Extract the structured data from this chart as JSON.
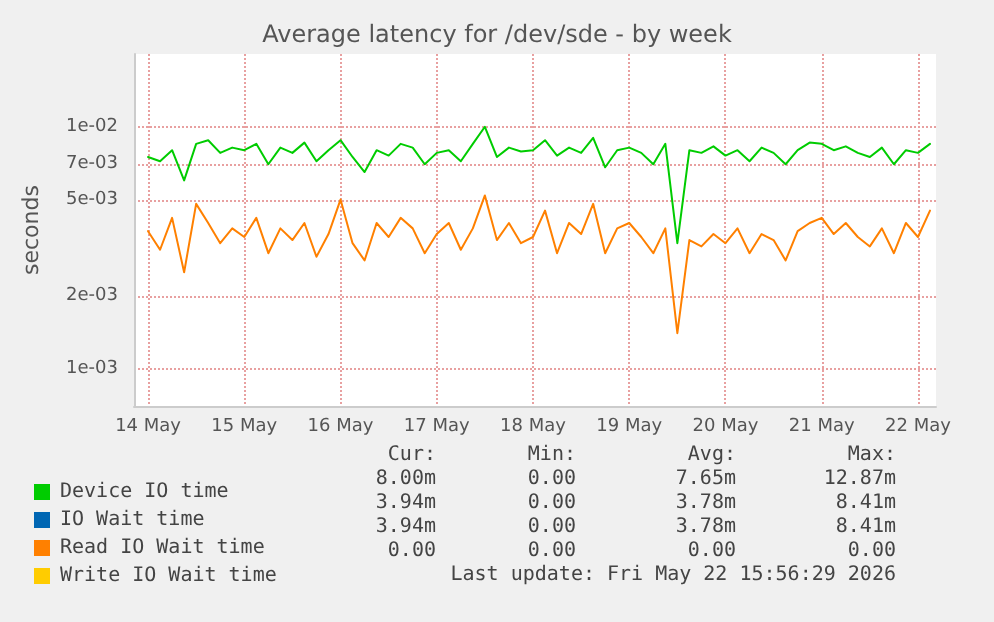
{
  "chart_data": {
    "type": "line",
    "title": "Average latency for /dev/sde - by week",
    "ylabel": "seconds",
    "x": [
      "2026-05-14T00:00",
      "2026-05-14T03:00",
      "2026-05-14T06:00",
      "2026-05-14T09:00",
      "2026-05-14T12:00",
      "2026-05-14T15:00",
      "2026-05-14T18:00",
      "2026-05-14T21:00",
      "2026-05-15T00:00",
      "2026-05-15T03:00",
      "2026-05-15T06:00",
      "2026-05-15T09:00",
      "2026-05-15T12:00",
      "2026-05-15T15:00",
      "2026-05-15T18:00",
      "2026-05-15T21:00",
      "2026-05-16T00:00",
      "2026-05-16T03:00",
      "2026-05-16T06:00",
      "2026-05-16T09:00",
      "2026-05-16T12:00",
      "2026-05-16T15:00",
      "2026-05-16T18:00",
      "2026-05-16T21:00",
      "2026-05-17T00:00",
      "2026-05-17T03:00",
      "2026-05-17T06:00",
      "2026-05-17T09:00",
      "2026-05-17T12:00",
      "2026-05-17T15:00",
      "2026-05-17T18:00",
      "2026-05-17T21:00",
      "2026-05-18T00:00",
      "2026-05-18T03:00",
      "2026-05-18T06:00",
      "2026-05-18T09:00",
      "2026-05-18T12:00",
      "2026-05-18T15:00",
      "2026-05-18T18:00",
      "2026-05-18T21:00",
      "2026-05-19T00:00",
      "2026-05-19T03:00",
      "2026-05-19T06:00",
      "2026-05-19T09:00",
      "2026-05-19T12:00",
      "2026-05-19T15:00",
      "2026-05-19T18:00",
      "2026-05-19T21:00",
      "2026-05-20T00:00",
      "2026-05-20T03:00",
      "2026-05-20T06:00",
      "2026-05-20T09:00",
      "2026-05-20T12:00",
      "2026-05-20T15:00",
      "2026-05-20T18:00",
      "2026-05-20T21:00",
      "2026-05-21T00:00",
      "2026-05-21T03:00",
      "2026-05-21T06:00",
      "2026-05-21T09:00",
      "2026-05-21T12:00",
      "2026-05-21T15:00",
      "2026-05-21T18:00",
      "2026-05-21T21:00",
      "2026-05-22T00:00",
      "2026-05-22T03:00"
    ],
    "series": [
      {
        "name": "Device IO time",
        "color": "#00cc00",
        "values": [
          0.0075,
          0.0072,
          0.008,
          0.006,
          0.0085,
          0.0088,
          0.0078,
          0.0082,
          0.008,
          0.0085,
          0.007,
          0.0082,
          0.0078,
          0.0086,
          0.0072,
          0.008,
          0.0088,
          0.0075,
          0.0065,
          0.008,
          0.0076,
          0.0085,
          0.0082,
          0.007,
          0.0078,
          0.008,
          0.0072,
          0.0085,
          0.01,
          0.0075,
          0.0082,
          0.0079,
          0.008,
          0.0088,
          0.0076,
          0.0082,
          0.0078,
          0.009,
          0.0068,
          0.008,
          0.0082,
          0.0078,
          0.007,
          0.0085,
          0.0033,
          0.008,
          0.0078,
          0.0083,
          0.0076,
          0.008,
          0.0072,
          0.0082,
          0.0078,
          0.007,
          0.008,
          0.0086,
          0.0085,
          0.008,
          0.0083,
          0.0078,
          0.0075,
          0.0082,
          0.007,
          0.008,
          0.0078,
          0.0085
        ]
      },
      {
        "name": "IO Wait time",
        "color": "#0066b3",
        "values": [
          null,
          null,
          null,
          null,
          null,
          null,
          null,
          null,
          null,
          null,
          null,
          null,
          null,
          null,
          null,
          null,
          null,
          null,
          null,
          null,
          null,
          null,
          null,
          null,
          null,
          null,
          null,
          null,
          null,
          null,
          null,
          null,
          null,
          null,
          null,
          null,
          null,
          null,
          null,
          null,
          null,
          null,
          null,
          null,
          null,
          null,
          null,
          null,
          null,
          null,
          null,
          null,
          null,
          null,
          null,
          null,
          null,
          null,
          null,
          null,
          null,
          null,
          null,
          null,
          null,
          null
        ]
      },
      {
        "name": "Read IO Wait time",
        "color": "#ff8000",
        "values": [
          0.0037,
          0.0031,
          0.0042,
          0.0025,
          0.0048,
          0.004,
          0.0033,
          0.0038,
          0.0035,
          0.0042,
          0.003,
          0.0038,
          0.0034,
          0.004,
          0.0029,
          0.0036,
          0.005,
          0.0033,
          0.0028,
          0.004,
          0.0035,
          0.0042,
          0.0038,
          0.003,
          0.0036,
          0.004,
          0.0031,
          0.0038,
          0.0052,
          0.0034,
          0.004,
          0.0033,
          0.0035,
          0.0045,
          0.003,
          0.004,
          0.0036,
          0.0048,
          0.003,
          0.0038,
          0.004,
          0.0035,
          0.003,
          0.0038,
          0.0014,
          0.0034,
          0.0032,
          0.0036,
          0.0033,
          0.0038,
          0.003,
          0.0036,
          0.0034,
          0.0028,
          0.0037,
          0.004,
          0.0042,
          0.0036,
          0.004,
          0.0035,
          0.0032,
          0.0038,
          0.003,
          0.004,
          0.0035,
          0.0045
        ]
      },
      {
        "name": "Write IO Wait time",
        "color": "#ffcc00",
        "values": [
          null,
          null,
          null,
          null,
          null,
          null,
          null,
          null,
          null,
          null,
          null,
          null,
          null,
          null,
          null,
          null,
          null,
          null,
          null,
          null,
          null,
          null,
          null,
          null,
          null,
          null,
          null,
          null,
          null,
          null,
          null,
          null,
          null,
          null,
          null,
          null,
          null,
          null,
          null,
          null,
          null,
          null,
          null,
          null,
          null,
          null,
          null,
          null,
          null,
          null,
          null,
          null,
          null,
          null,
          null,
          null,
          null,
          null,
          null,
          null,
          null,
          null,
          null,
          null,
          null,
          null
        ]
      }
    ],
    "xlim": [
      "2026-05-13T20:30",
      "2026-05-22T04:30"
    ],
    "xticks": [
      {
        "value": "2026-05-14",
        "label": "14 May"
      },
      {
        "value": "2026-05-15",
        "label": "15 May"
      },
      {
        "value": "2026-05-16",
        "label": "16 May"
      },
      {
        "value": "2026-05-17",
        "label": "17 May"
      },
      {
        "value": "2026-05-18",
        "label": "18 May"
      },
      {
        "value": "2026-05-19",
        "label": "19 May"
      },
      {
        "value": "2026-05-20",
        "label": "20 May"
      },
      {
        "value": "2026-05-21",
        "label": "21 May"
      },
      {
        "value": "2026-05-22",
        "label": "22 May"
      }
    ],
    "ylim": [
      0.0007,
      0.02
    ],
    "yticks": [
      {
        "value": 0.001,
        "label": "1e-03"
      },
      {
        "value": 0.002,
        "label": "2e-03"
      },
      {
        "value": 0.005,
        "label": "5e-03"
      },
      {
        "value": 0.007,
        "label": "7e-03"
      },
      {
        "value": 0.01,
        "label": "1e-02"
      }
    ],
    "log": "y",
    "grid": true,
    "legend": "bottom",
    "marker": "none",
    "line_style": "solid",
    "annotations": [
      "Cur:",
      "Min:",
      "Avg:",
      "Max:",
      "8.00m",
      "0.00",
      "7.65m",
      "12.87m",
      "3.94m",
      "0.00",
      "3.78m",
      "8.41m",
      "3.94m",
      "0.00",
      "3.78m",
      "8.41m",
      "0.00",
      "0.00",
      "0.00",
      "0.00",
      "Last update: Fri May 22 15:56:29 2026"
    ]
  }
}
